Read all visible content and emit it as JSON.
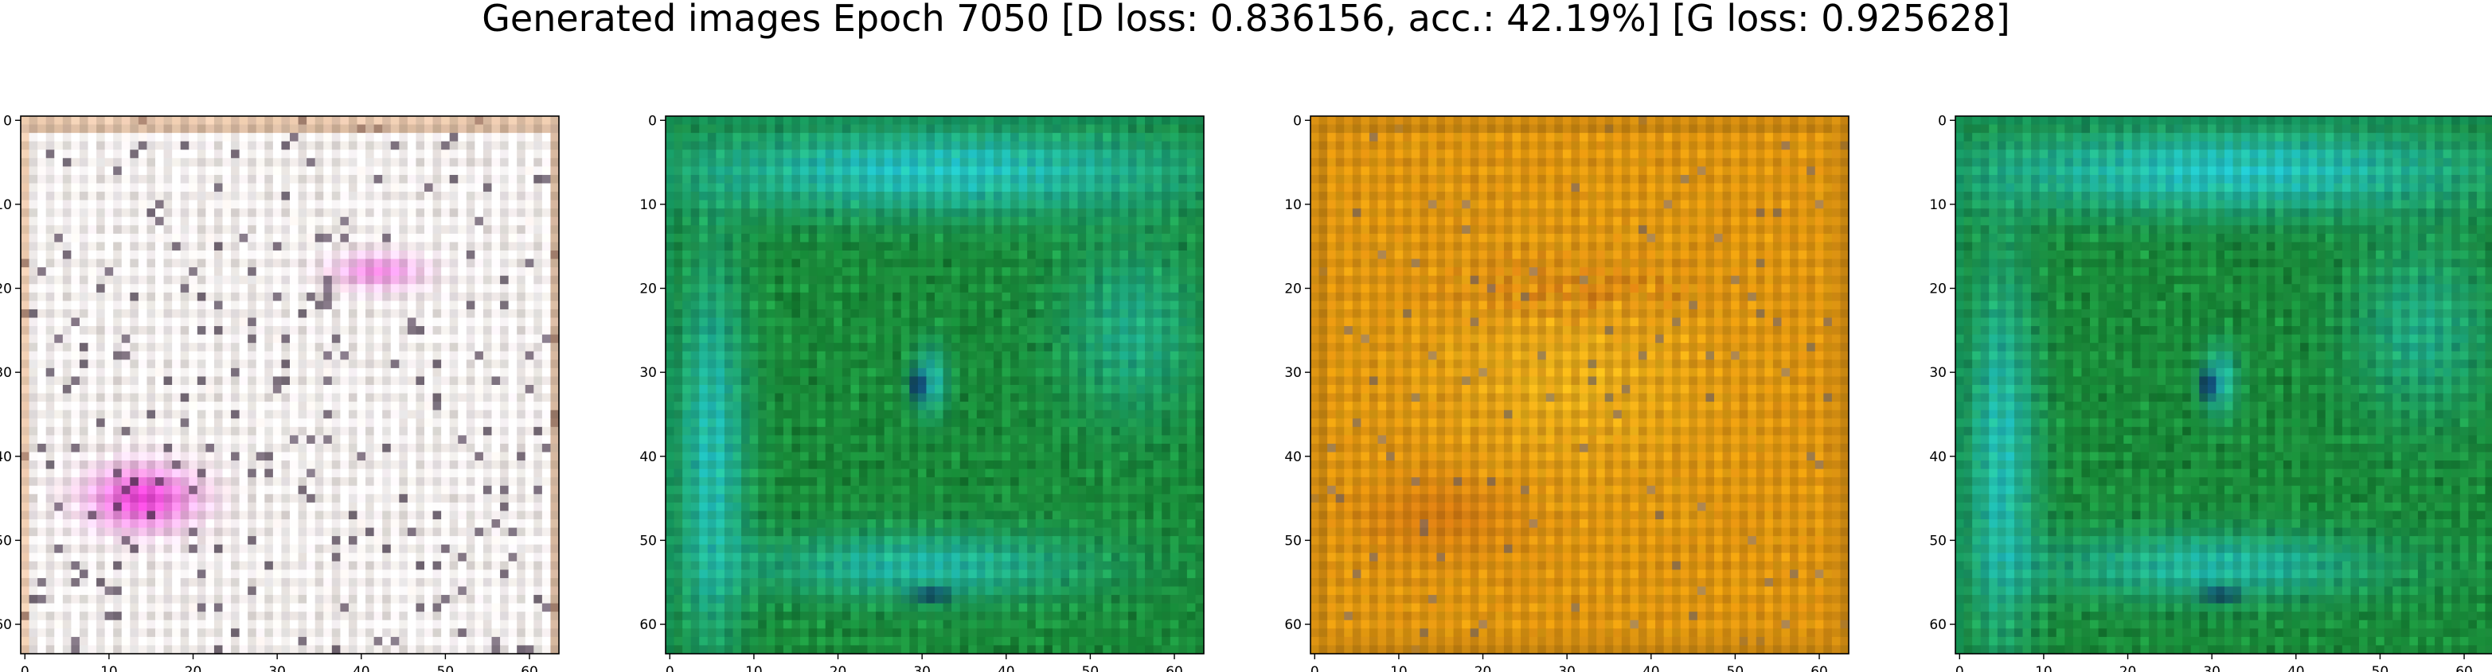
{
  "figure": {
    "title": "Generated images Epoch 7050 [D loss: 0.836156, acc.: 42.19%] [G loss: 0.925628]"
  },
  "axes": {
    "x_ticks": [
      0,
      10,
      20,
      30,
      40,
      50,
      60
    ],
    "y_ticks": [
      0,
      10,
      20,
      30,
      40,
      50,
      60
    ],
    "range": [
      -0.5,
      63.5
    ],
    "image_size": 64
  },
  "panels": [
    {
      "name": "generated-image-1",
      "palette": {
        "base": "#e8dde4",
        "mid": "#ffffff",
        "accent1": "#e020c8",
        "accent2": "#2a1a30",
        "accent3": "#b0a890",
        "border": "#c08858"
      }
    },
    {
      "name": "generated-image-2",
      "palette": {
        "base": "#1a9a40",
        "mid": "#20c0d8",
        "accent1": "#0c5a20",
        "accent2": "#0a1a60",
        "accent3": "#38c860",
        "border": "#0a7a5a"
      }
    },
    {
      "name": "generated-image-3",
      "palette": {
        "base": "#d8900c",
        "mid": "#e8c020",
        "accent1": "#b84010",
        "accent2": "#606080",
        "accent3": "#c07018",
        "border": "#b87a10"
      }
    },
    {
      "name": "generated-image-4",
      "palette": {
        "base": "#1a9a40",
        "mid": "#20c0d8",
        "accent1": "#0c5a20",
        "accent2": "#0a1a60",
        "accent3": "#38c860",
        "border": "#0a7a5a"
      }
    }
  ]
}
